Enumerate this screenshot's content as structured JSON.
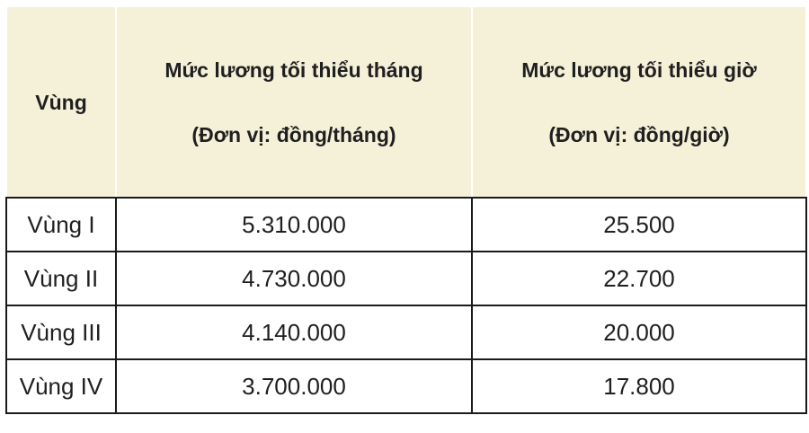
{
  "table": {
    "columns": [
      {
        "label": "Vùng",
        "sublabel": ""
      },
      {
        "label": "Mức lương tối thiểu tháng",
        "sublabel": "(Đơn vị: đồng/tháng)"
      },
      {
        "label": "Mức lương tối thiểu giờ",
        "sublabel": "(Đơn vị: đồng/giờ)"
      }
    ],
    "rows": [
      {
        "region": "Vùng I",
        "monthly": "5.310.000",
        "hourly": "25.500"
      },
      {
        "region": "Vùng II",
        "monthly": "4.730.000",
        "hourly": "22.700"
      },
      {
        "region": "Vùng III",
        "monthly": "4.140.000",
        "hourly": "20.000"
      },
      {
        "region": "Vùng IV",
        "monthly": "3.700.000",
        "hourly": "17.800"
      }
    ]
  },
  "colors": {
    "header_bg": "#f5f1d9",
    "header_divider": "#ffffff",
    "body_border": "#1a1a1a",
    "text": "#1f1f1f",
    "page_bg": "#ffffff"
  }
}
